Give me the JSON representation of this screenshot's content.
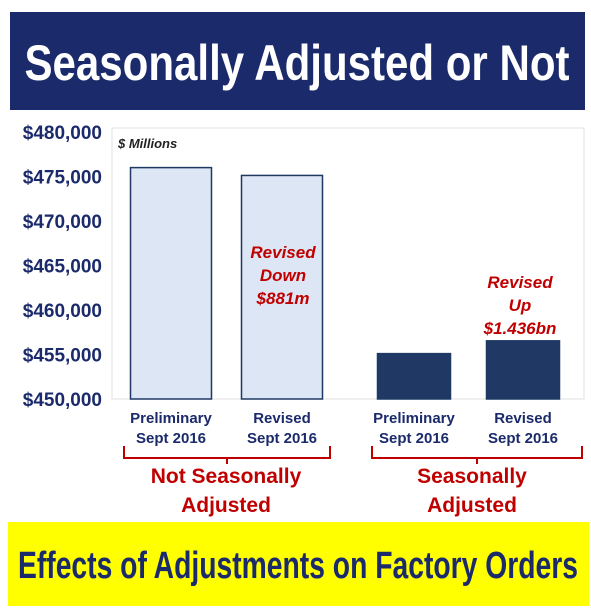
{
  "chart_data": {
    "type": "bar",
    "title": "Seasonally Adjusted or Not",
    "subtitle": "Effects of Adjustments on Factory Orders",
    "unit_label": "$ Millions",
    "categories": [
      [
        "Preliminary",
        "Sept 2016"
      ],
      [
        "Revised",
        "Sept 2016"
      ],
      [
        "Preliminary",
        "Sept 2016"
      ],
      [
        "Revised",
        "Sept 2016"
      ]
    ],
    "values": [
      476000,
      475119,
      455100,
      456536
    ],
    "colors": [
      "#dce6f4",
      "#dce6f4",
      "#1f3864",
      "#1f3864"
    ],
    "groups": [
      [
        "Not Seasonally",
        "Adjusted"
      ],
      [
        "Seasonally",
        "Adjusted"
      ]
    ],
    "annotations": [
      [
        "Revised",
        "Down",
        "$881m"
      ],
      [
        "Revised",
        "Up",
        "$1.436bn"
      ]
    ],
    "ylim": [
      450000,
      480000
    ],
    "yticks": [
      {
        "value": 450000,
        "label": "$450,000"
      },
      {
        "value": 455000,
        "label": "$455,000"
      },
      {
        "value": 460000,
        "label": "$460,000"
      },
      {
        "value": 465000,
        "label": "$465,000"
      },
      {
        "value": 470000,
        "label": "$470,000"
      },
      {
        "value": 475000,
        "label": "$475,000"
      },
      {
        "value": 480000,
        "label": "$480,000"
      }
    ],
    "grid": false
  }
}
